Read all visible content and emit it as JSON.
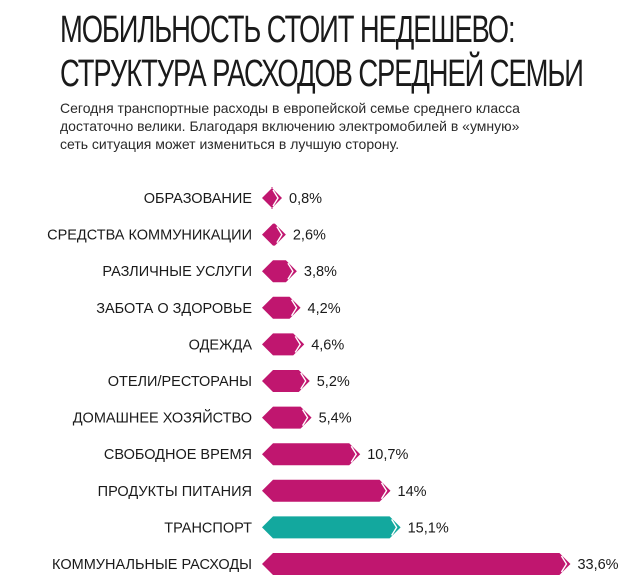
{
  "title_line1": "МОБИЛЬНОСТЬ СТОИТ НЕДЕШЕВО:",
  "title_line2": "СТРУКТУРА РАСХОДОВ СРЕДНЕЙ СЕМЬИ",
  "subtitle_line1": "Сегодня транспортные расходы в европейской семье среднего класса",
  "subtitle_line2": "достаточно велики. Благодаря включению электромобилей в «умную»",
  "subtitle_line3": "сеть ситуация может измениться в лучшую сторону.",
  "colors": {
    "bar": "#c0166f",
    "highlight": "#13a89e",
    "bar_tip": "#ffffff"
  },
  "chart_data": {
    "type": "bar",
    "orientation": "horizontal",
    "unit": "%",
    "categories": [
      "ОБРАЗОВАНИЕ",
      "СРЕДСТВА КОММУНИКАЦИИ",
      "РАЗЛИЧНЫЕ УСЛУГИ",
      "ЗАБОТА О ЗДОРОВЬЕ",
      "ОДЕЖДА",
      "ОТЕЛИ/РЕСТОРАНЫ",
      "ДОМАШНЕЕ ХОЗЯЙСТВО",
      "СВОБОДНОЕ ВРЕМЯ",
      "ПРОДУКТЫ ПИТАНИЯ",
      "ТРАНСПОРТ",
      "КОММУНАЛЬНЫЕ РАСХОДЫ"
    ],
    "values": [
      0.8,
      2.6,
      3.8,
      4.2,
      4.6,
      5.2,
      5.4,
      10.7,
      14,
      15.1,
      33.6
    ],
    "value_labels": [
      "0,8%",
      "2,6%",
      "3,8%",
      "4,2%",
      "4,6%",
      "5,2%",
      "5,4%",
      "10,7%",
      "14%",
      "15,1%",
      "33,6%"
    ],
    "highlight_category": "ТРАНСПОРТ",
    "grid": false,
    "legend": "none"
  }
}
